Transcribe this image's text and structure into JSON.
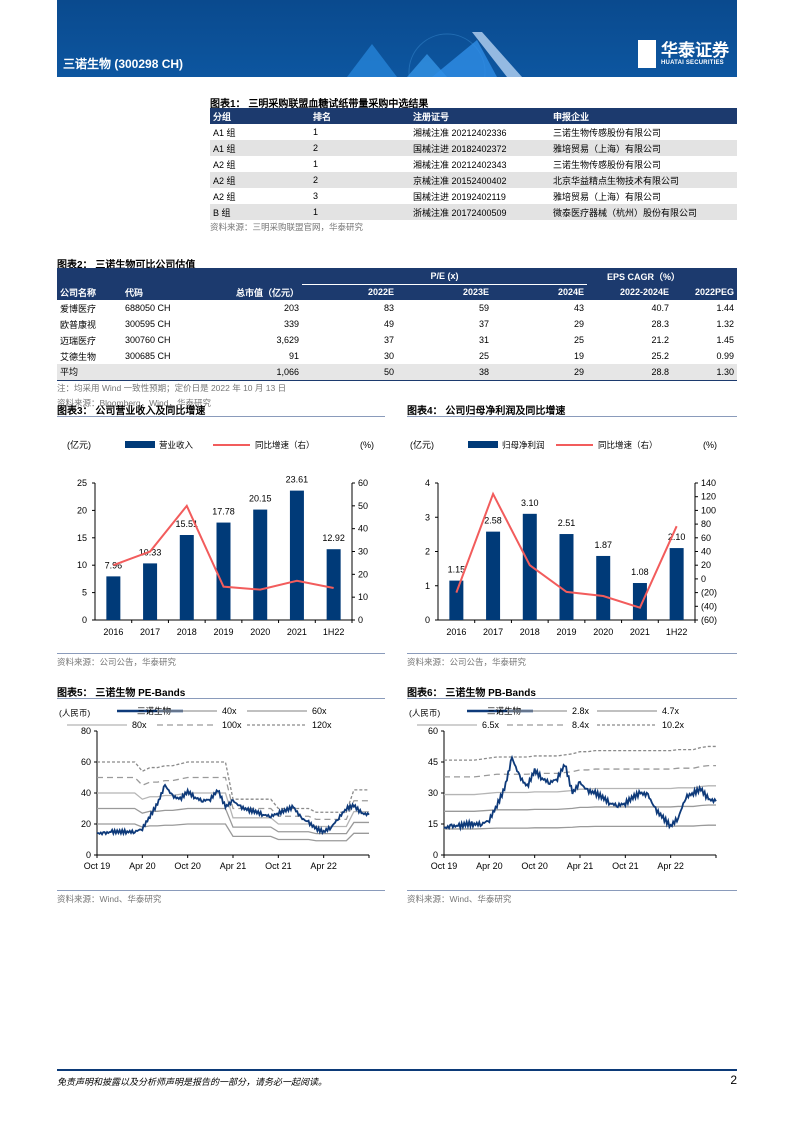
{
  "header": {
    "stock": "三诺生物 (300298 CH)",
    "logo_cn": "华泰证券",
    "logo_en": "HUATAI SECURITIES"
  },
  "table1": {
    "title": "图表1：  三明采购联盟血糖试纸带量采购中选结果",
    "columns": [
      "分组",
      "排名",
      "注册证号",
      "申报企业"
    ],
    "rows": [
      [
        "A1 组",
        "1",
        "湘械注准 20212402336",
        "三诺生物传感股份有限公司"
      ],
      [
        "A1 组",
        "2",
        "国械注进 20182402372",
        "雅培贸易（上海）有限公司"
      ],
      [
        "A2 组",
        "1",
        "湘械注准 20212402343",
        "三诺生物传感股份有限公司"
      ],
      [
        "A2 组",
        "2",
        "京械注准 20152400402",
        "北京华益精点生物技术有限公司"
      ],
      [
        "A2 组",
        "3",
        "国械注进 20192402119",
        "雅培贸易（上海）有限公司"
      ],
      [
        "B 组",
        "1",
        "浙械注准 20172400509",
        "微泰医疗器械（杭州）股份有限公司"
      ]
    ],
    "source": "资料来源：三明采购联盟官网，华泰研究"
  },
  "table2": {
    "title": "图表2：  三诺生物可比公司估值",
    "group_pe": "P/E (x)",
    "group_eps": "EPS CAGR（%）",
    "columns": [
      "公司名称",
      "代码",
      "总市值（亿元）",
      "2022E",
      "2023E",
      "2024E",
      "2022-2024E",
      "2022PEG"
    ],
    "rows": [
      [
        "爱博医疗",
        "688050 CH",
        "203",
        "83",
        "59",
        "43",
        "40.7",
        "1.44"
      ],
      [
        "欧普康视",
        "300595 CH",
        "339",
        "49",
        "37",
        "29",
        "28.3",
        "1.32"
      ],
      [
        "迈瑞医疗",
        "300760 CH",
        "3,629",
        "37",
        "31",
        "25",
        "21.2",
        "1.45"
      ],
      [
        "艾德生物",
        "300685 CH",
        "91",
        "30",
        "25",
        "19",
        "25.2",
        "0.99"
      ]
    ],
    "avg": [
      "平均",
      "",
      "1,066",
      "50",
      "38",
      "29",
      "28.8",
      "1.30"
    ],
    "note": "注：均采用 Wind 一致性预期；定价日是 2022 年 10 月 13 日",
    "source": "资料来源：Bloomberg，Wind，华泰研究"
  },
  "chart_data": [
    {
      "type": "bar",
      "title": "图表3：  公司营业收入及同比增速",
      "ylabel": "(亿元)",
      "y2label": "(%)",
      "categories": [
        "2016",
        "2017",
        "2018",
        "2019",
        "2020",
        "2021",
        "1H22"
      ],
      "series": [
        {
          "name": "营业收入",
          "type": "bar",
          "values": [
            7.96,
            10.33,
            15.51,
            17.78,
            20.15,
            23.61,
            12.92
          ],
          "labels": [
            "7.96",
            "10.33",
            "15.51",
            "17.78",
            "20.15",
            "23.61",
            "12.92"
          ]
        },
        {
          "name": "同比增速（右）",
          "type": "line",
          "values": [
            24,
            30,
            50,
            14.6,
            13.3,
            17.2,
            14
          ]
        }
      ],
      "ylim": [
        0,
        25
      ],
      "yticks": [
        "0",
        "5",
        "10",
        "15",
        "20",
        "25"
      ],
      "y2lim": [
        0,
        60
      ],
      "y2ticks": [
        "0",
        "10",
        "20",
        "30",
        "40",
        "50",
        "60"
      ],
      "source": "资料来源：公司公告，华泰研究",
      "colors": {
        "bar": "#003a78",
        "line": "#f25c5c"
      }
    },
    {
      "type": "bar",
      "title": "图表4：  公司归母净利润及同比增速",
      "ylabel": "(亿元)",
      "y2label": "(%)",
      "categories": [
        "2016",
        "2017",
        "2018",
        "2019",
        "2020",
        "2021",
        "1H22"
      ],
      "series": [
        {
          "name": "归母净利润",
          "type": "bar",
          "values": [
            1.15,
            2.58,
            3.1,
            2.51,
            1.87,
            1.08,
            2.1
          ],
          "labels": [
            "1.15",
            "2.58",
            "3.10",
            "2.51",
            "1.87",
            "1.08",
            "2.10"
          ]
        },
        {
          "name": "同比增速（右）",
          "type": "line",
          "values": [
            -20,
            124,
            20,
            -19,
            -25,
            -42,
            77
          ]
        }
      ],
      "ylim": [
        0,
        4
      ],
      "yticks": [
        "0",
        "1",
        "2",
        "3",
        "4"
      ],
      "y2lim": [
        -60,
        140
      ],
      "y2ticks": [
        "(60)",
        "(40)",
        "(20)",
        "0",
        "20",
        "40",
        "60",
        "80",
        "100",
        "120",
        "140"
      ],
      "source": "资料来源：公司公告，华泰研究",
      "colors": {
        "bar": "#003a78",
        "line": "#f25c5c"
      }
    },
    {
      "type": "line",
      "title": "图表5：  三诺生物 PE-Bands",
      "ylabel": "(人民币)",
      "ylim": [
        0,
        80
      ],
      "yticks": [
        "0",
        "20",
        "40",
        "60",
        "80"
      ],
      "xticks": [
        "Oct 19",
        "Apr 20",
        "Oct 20",
        "Apr 21",
        "Oct 21",
        "Apr 22"
      ],
      "price_name": "三诺生物",
      "price": [
        14,
        14,
        15,
        15,
        15,
        15,
        17,
        25,
        33,
        45,
        38,
        36,
        41,
        37,
        35,
        36,
        42,
        31,
        35,
        31,
        29,
        28,
        26,
        25,
        27,
        29,
        31,
        24,
        21,
        17,
        15,
        18,
        24,
        30,
        32,
        27,
        26
      ],
      "band_names": [
        "40x",
        "60x",
        "80x",
        "100x",
        "120x"
      ],
      "band_multiples": [
        40,
        60,
        80,
        100,
        120
      ],
      "eps": [
        0.5,
        0.5,
        0.5,
        0.5,
        0.5,
        0.5,
        0.45,
        0.47,
        0.47,
        0.48,
        0.48,
        0.49,
        0.5,
        0.5,
        0.5,
        0.5,
        0.5,
        0.5,
        0.3,
        0.3,
        0.3,
        0.3,
        0.3,
        0.3,
        0.25,
        0.25,
        0.25,
        0.25,
        0.25,
        0.23,
        0.23,
        0.23,
        0.23,
        0.23,
        0.35,
        0.35,
        0.35
      ],
      "source": "资料来源：Wind、华泰研究"
    },
    {
      "type": "line",
      "title": "图表6：  三诺生物 PB-Bands",
      "ylabel": "(人民币)",
      "ylim": [
        0,
        60
      ],
      "yticks": [
        "0",
        "15",
        "30",
        "45",
        "60"
      ],
      "xticks": [
        "Oct 19",
        "Apr 20",
        "Oct 20",
        "Apr 21",
        "Oct 21",
        "Apr 22"
      ],
      "price_name": "三诺生物",
      "price": [
        13,
        14,
        14,
        15,
        15,
        15,
        17,
        24,
        32,
        47,
        38,
        33,
        41,
        37,
        35,
        37,
        44,
        30,
        35,
        31,
        30,
        28,
        25,
        24,
        25,
        28,
        30,
        29,
        22,
        18,
        14,
        18,
        28,
        30,
        32,
        27,
        26
      ],
      "band_names": [
        "2.8x",
        "4.7x",
        "6.5x",
        "8.4x",
        "10.2x"
      ],
      "band_multiples": [
        2.8,
        4.7,
        6.5,
        8.4,
        10.2
      ],
      "bvps": [
        4.5,
        4.5,
        4.5,
        4.5,
        4.5,
        4.55,
        4.6,
        4.65,
        4.65,
        4.65,
        4.65,
        4.65,
        4.7,
        4.7,
        4.7,
        4.7,
        4.75,
        4.8,
        4.9,
        4.9,
        4.95,
        4.95,
        4.95,
        4.95,
        4.95,
        4.95,
        4.95,
        4.95,
        4.95,
        4.95,
        4.95,
        5.0,
        5.0,
        5.0,
        5.1,
        5.15,
        5.15
      ],
      "source": "资料来源：Wind、华泰研究"
    }
  ],
  "footer": {
    "disclaimer": "免责声明和披露以及分析师声明是报告的一部分，请务必一起阅读。",
    "page": "2"
  }
}
